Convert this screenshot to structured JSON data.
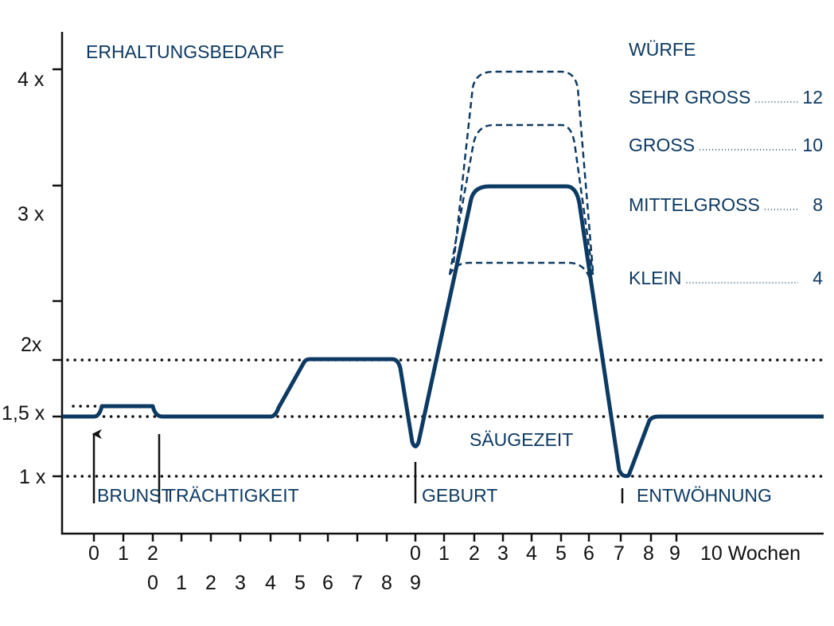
{
  "title": "ERHALTUNGSBEDARF",
  "y_axis": {
    "labels": [
      "4 x",
      "3 x",
      "2x",
      "1,5 x",
      "1 x"
    ]
  },
  "x_axis": {
    "row1": [
      "0",
      "1",
      "2",
      "0",
      "1",
      "2",
      "3",
      "4",
      "5",
      "6",
      "7",
      "8",
      "9",
      "10 Wochen"
    ],
    "row2": [
      "0",
      "1",
      "2",
      "3",
      "4",
      "5",
      "6",
      "7",
      "8",
      "9"
    ]
  },
  "legend": {
    "title": "WÜRFE",
    "items": [
      {
        "label": "SEHR GROSS",
        "value": "12"
      },
      {
        "label": "GROSS",
        "value": "10"
      },
      {
        "label": "MITTELGROSS",
        "value": "8"
      },
      {
        "label": "KLEIN",
        "value": "4"
      }
    ]
  },
  "events": [
    "BRUNST",
    "TRÄCHTIGKEIT",
    "GEBURT",
    "ENTWÖHNUNG"
  ],
  "phase": "SÄUGEZEIT"
}
